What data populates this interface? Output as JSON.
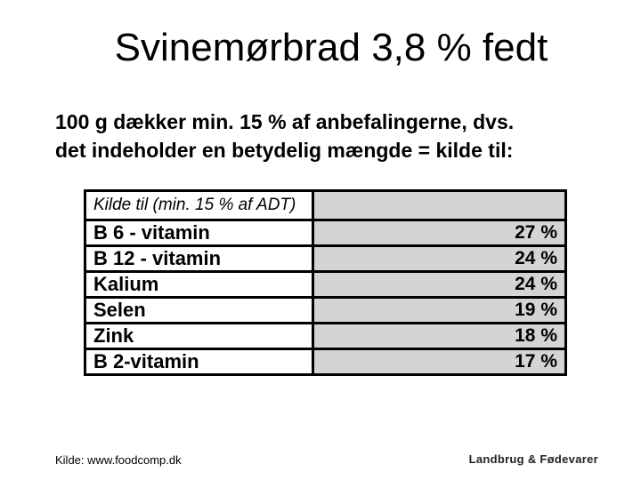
{
  "slide": {
    "title": "Svinemørbrad 3,8 % fedt",
    "body": {
      "line1": "100 g dækker min. 15 % af anbefalingerne, dvs.",
      "line2": "det indeholder en betydelig mængde = kilde til:"
    },
    "table": {
      "header_label": "Kilde til (min. 15 % af ADT)",
      "header_value": "",
      "rows": [
        {
          "label": "B 6 - vitamin",
          "value": "27 %"
        },
        {
          "label": "B 12 - vitamin",
          "value": "24 %"
        },
        {
          "label": "Kalium",
          "value": "24 %"
        },
        {
          "label": "Selen",
          "value": "19 %"
        },
        {
          "label": "Zink",
          "value": "18 %"
        },
        {
          "label": "B 2-vitamin",
          "value": "17 %"
        }
      ]
    },
    "footer": {
      "source": "Kilde: www.foodcomp.dk",
      "logo_text": "Landbrug & Fødevarer"
    },
    "colors": {
      "background": "#ffffff",
      "text": "#000000",
      "table_border": "#000000",
      "value_cell_bg": "#d4d4d4",
      "logo_text_color": "#222222"
    }
  }
}
